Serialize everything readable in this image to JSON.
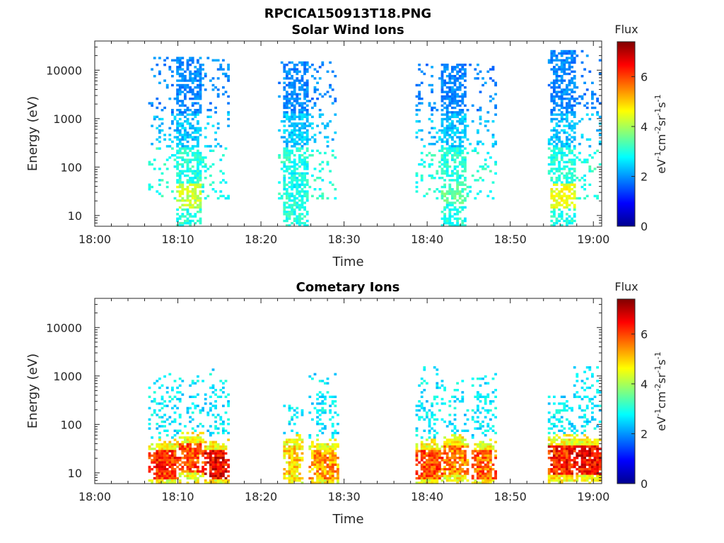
{
  "figure": {
    "filename": "RPCICA150913T18.PNG"
  },
  "colorbar": {
    "title": "Flux",
    "unit_label_parts": [
      "eV",
      "-1",
      "cm",
      "-2",
      "sr",
      "-1",
      "s",
      "-1"
    ],
    "range": [
      0,
      7.4
    ],
    "tick_labels": [
      "0",
      "2",
      "4",
      "6"
    ]
  },
  "chart_data": [
    {
      "type": "heatmap",
      "title": "Solar Wind Ions",
      "xlabel": "Time",
      "ylabel": "Energy (eV)",
      "x_tick_labels": [
        "18:00",
        "18:10",
        "18:20",
        "18:30",
        "18:40",
        "18:50",
        "19:00"
      ],
      "y_tick_labels": [
        "10",
        "100",
        "1000",
        "10000"
      ],
      "x_range_minutes": [
        0,
        61
      ],
      "y_scale": "log",
      "y_range": [
        6,
        40000
      ],
      "flux_range": [
        0,
        7.4
      ],
      "bursts": [
        {
          "t_start_min": 6.5,
          "t_end_min": 15.9,
          "core_start_min": 9.8,
          "core_end_min": 12.7,
          "max_energy_ev": 18000,
          "peak_energy_ev": 25,
          "peak_flux": 4.6
        },
        {
          "t_start_min": 22.2,
          "t_end_min": 28.6,
          "core_start_min": 22.4,
          "core_end_min": 25.6,
          "max_energy_ev": 15000,
          "peak_energy_ev": 60,
          "peak_flux": 3.3
        },
        {
          "t_start_min": 38.8,
          "t_end_min": 48.0,
          "core_start_min": 41.6,
          "core_end_min": 44.6,
          "max_energy_ev": 14000,
          "peak_energy_ev": 30,
          "peak_flux": 3.8
        },
        {
          "t_start_min": 54.8,
          "t_end_min": 61.0,
          "core_start_min": 54.8,
          "core_end_min": 57.7,
          "max_energy_ev": 27000,
          "peak_energy_ev": 25,
          "peak_flux": 4.9
        }
      ]
    },
    {
      "type": "heatmap",
      "title": "Cometary Ions",
      "xlabel": "Time",
      "ylabel": "Energy (eV)",
      "x_tick_labels": [
        "18:00",
        "18:10",
        "18:20",
        "18:30",
        "18:40",
        "18:50",
        "19:00"
      ],
      "y_tick_labels": [
        "10",
        "100",
        "1000",
        "10000"
      ],
      "x_range_minutes": [
        0,
        61
      ],
      "y_scale": "log",
      "y_range": [
        6,
        40000
      ],
      "flux_range": [
        0,
        7.4
      ],
      "bursts": [
        {
          "t_start_min": 6.7,
          "t_end_min": 9.9,
          "max_energy_ev": 1200,
          "peak_energy_ev": 15,
          "peak_flux": 6.8
        },
        {
          "t_start_min": 10.4,
          "t_end_min": 12.6,
          "max_energy_ev": 1000,
          "peak_energy_ev": 20,
          "peak_flux": 6.6
        },
        {
          "t_start_min": 13.4,
          "t_end_min": 15.8,
          "max_energy_ev": 1500,
          "peak_energy_ev": 15,
          "peak_flux": 7.2
        },
        {
          "t_start_min": 22.7,
          "t_end_min": 24.7,
          "max_energy_ev": 250,
          "peak_energy_ev": 18,
          "peak_flux": 5.6
        },
        {
          "t_start_min": 26.0,
          "t_end_min": 28.8,
          "max_energy_ev": 1100,
          "peak_energy_ev": 15,
          "peak_flux": 6.0
        },
        {
          "t_start_min": 38.8,
          "t_end_min": 41.4,
          "max_energy_ev": 1600,
          "peak_energy_ev": 15,
          "peak_flux": 6.6
        },
        {
          "t_start_min": 42.0,
          "t_end_min": 44.6,
          "max_energy_ev": 900,
          "peak_energy_ev": 18,
          "peak_flux": 6.2
        },
        {
          "t_start_min": 45.4,
          "t_end_min": 47.8,
          "max_energy_ev": 1100,
          "peak_energy_ev": 15,
          "peak_flux": 6.4
        },
        {
          "t_start_min": 54.6,
          "t_end_min": 57.4,
          "max_energy_ev": 400,
          "peak_energy_ev": 18,
          "peak_flux": 7.0
        },
        {
          "t_start_min": 57.8,
          "t_end_min": 61.0,
          "max_energy_ev": 1600,
          "peak_energy_ev": 18,
          "peak_flux": 7.2
        }
      ]
    }
  ]
}
